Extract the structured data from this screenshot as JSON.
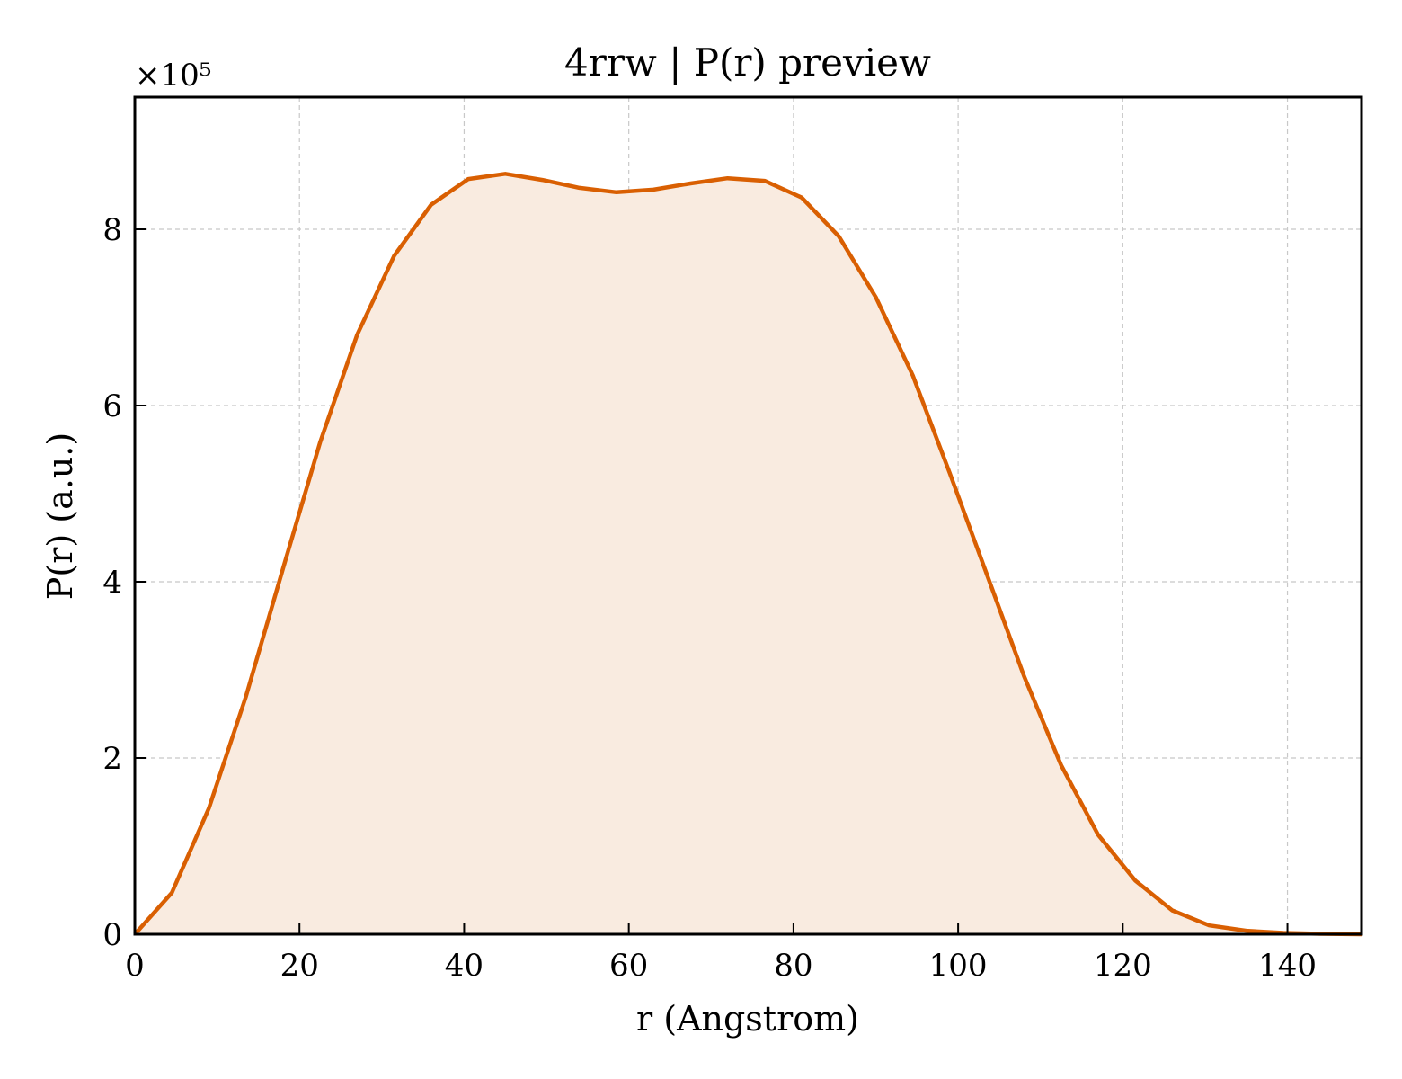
{
  "chart_data": {
    "type": "area",
    "title": "4rrw | P(r) preview",
    "xlabel": "r (Angstrom)",
    "ylabel": "P(r) (a.u.)",
    "y_offset_label": "×10⁵",
    "y_scale_factor": 100000,
    "xlim": [
      0,
      149
    ],
    "ylim": [
      0,
      950000
    ],
    "xticks": [
      0,
      20,
      40,
      60,
      80,
      100,
      120,
      140
    ],
    "yticks": [
      0,
      200000,
      400000,
      600000,
      800000
    ],
    "ytick_labels": [
      "0",
      "2",
      "4",
      "6",
      "8"
    ],
    "grid": true,
    "colors": {
      "line": "#d95f02",
      "fill": "#f9ebe0"
    },
    "series": [
      {
        "x": [
          0,
          4.5,
          9,
          13.5,
          18,
          22.5,
          27,
          31.5,
          36,
          40.5,
          45,
          49.5,
          54,
          58.5,
          63,
          67.5,
          72,
          76.5,
          81,
          85.5,
          90,
          94.5,
          99,
          103.5,
          108,
          112.5,
          117,
          121.5,
          126,
          130.5,
          135,
          139.5,
          144,
          149
        ],
        "y": [
          0,
          47000,
          143000,
          270000,
          415000,
          558000,
          680000,
          770000,
          828000,
          857000,
          863000,
          856000,
          847000,
          842000,
          845000,
          852000,
          858000,
          855000,
          836000,
          792000,
          723000,
          634000,
          523000,
          408000,
          293000,
          192000,
          113000,
          61000,
          27000,
          10000,
          4000,
          1500,
          500,
          0
        ]
      }
    ]
  }
}
